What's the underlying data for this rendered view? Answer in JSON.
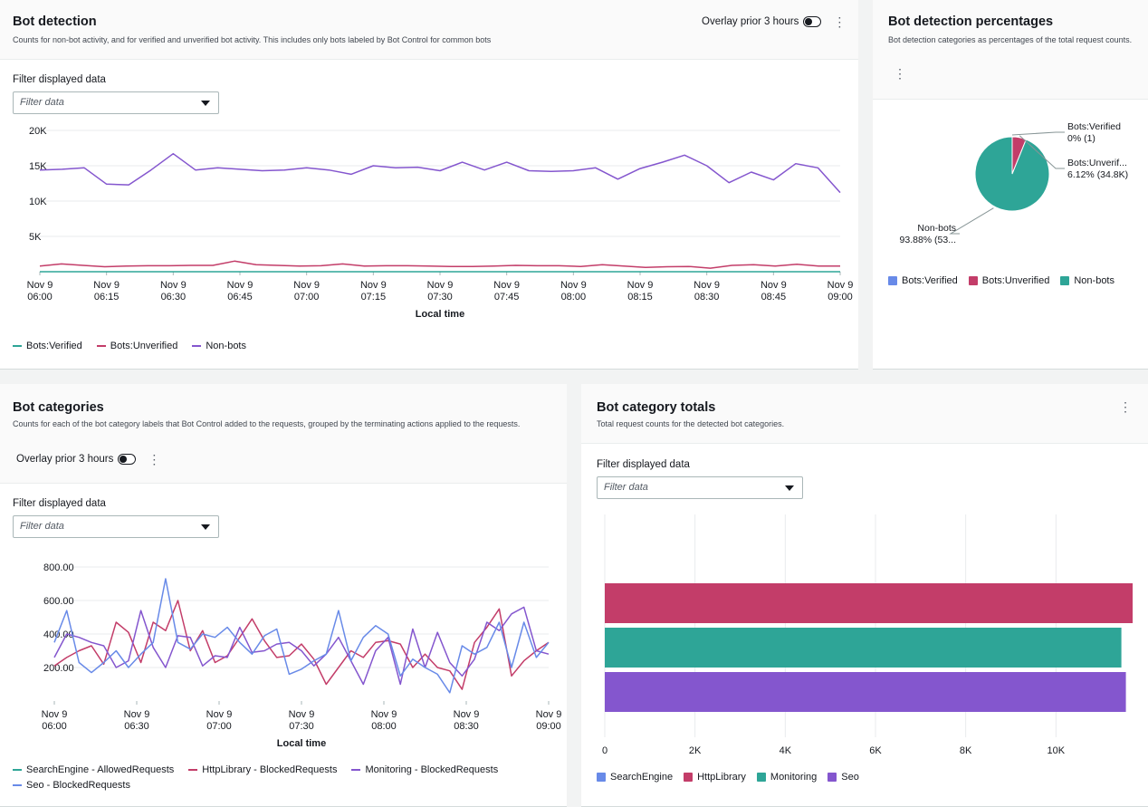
{
  "colors": {
    "verified": "#2ea597",
    "unverified": "#c33d69",
    "nonbots": "#8456ce",
    "search_engine": "#688ae8",
    "http_library": "#c33d69",
    "monitoring": "#2ea597",
    "seo": "#8456ce",
    "grid": "#e9ebed"
  },
  "icons": {
    "kebab": "⋮"
  },
  "panel1": {
    "title": "Bot detection",
    "description": "Counts for non-bot activity, and for verified and unverified bot activity. This includes only bots labeled by Bot Control for common bots",
    "overlay_label": "Overlay prior 3 hours",
    "filter_label": "Filter displayed data",
    "filter_placeholder": "Filter data"
  },
  "panel2": {
    "title": "Bot detection percentages",
    "description": "Bot detection categories as percentages of the total request counts."
  },
  "panel3": {
    "title": "Bot categories",
    "description": "Counts for each of the bot category labels that Bot Control added to the requests, grouped by the terminating actions applied to the requests.",
    "overlay_label": "Overlay prior 3 hours",
    "filter_label": "Filter displayed data",
    "filter_placeholder": "Filter data"
  },
  "panel4": {
    "title": "Bot category totals",
    "description": "Total request counts for the detected bot categories.",
    "filter_label": "Filter displayed data",
    "filter_placeholder": "Filter data"
  },
  "chart_data": [
    {
      "type": "line",
      "x_ticks": [
        [
          "Nov 9",
          "06:00"
        ],
        [
          "Nov 9",
          "06:15"
        ],
        [
          "Nov 9",
          "06:30"
        ],
        [
          "Nov 9",
          "06:45"
        ],
        [
          "Nov 9",
          "07:00"
        ],
        [
          "Nov 9",
          "07:15"
        ],
        [
          "Nov 9",
          "07:30"
        ],
        [
          "Nov 9",
          "07:45"
        ],
        [
          "Nov 9",
          "08:00"
        ],
        [
          "Nov 9",
          "08:15"
        ],
        [
          "Nov 9",
          "08:30"
        ],
        [
          "Nov 9",
          "08:45"
        ],
        [
          "Nov 9",
          "09:00"
        ]
      ],
      "xlabel": "Local time",
      "y_ticks": [
        "20K",
        "15K",
        "10K",
        "5K"
      ],
      "ylim": [
        0,
        20000
      ],
      "series": [
        {
          "name": "Bots:Verified",
          "color_key": "verified",
          "values": [
            0,
            0,
            0,
            0,
            0,
            0,
            0,
            0,
            0,
            0,
            0,
            0,
            0,
            0,
            0,
            0,
            0,
            0,
            0,
            0,
            0,
            0,
            0,
            0,
            0,
            0,
            0,
            0,
            0,
            0,
            0,
            0,
            0,
            0,
            0,
            0,
            0,
            0
          ]
        },
        {
          "name": "Bots:Unverified",
          "color_key": "unverified",
          "values": [
            800,
            1100,
            900,
            700,
            800,
            850,
            850,
            900,
            900,
            1500,
            1000,
            900,
            800,
            850,
            1100,
            800,
            850,
            850,
            800,
            750,
            750,
            800,
            900,
            850,
            850,
            750,
            1000,
            800,
            600,
            700,
            750,
            500,
            900,
            1000,
            800,
            1050,
            800,
            800
          ]
        },
        {
          "name": "Non-bots",
          "color_key": "nonbots",
          "values": [
            14400,
            14500,
            14700,
            12400,
            12300,
            14400,
            16700,
            14400,
            14700,
            14500,
            14300,
            14400,
            14700,
            14400,
            13800,
            15000,
            14700,
            14800,
            14300,
            15500,
            14400,
            15500,
            14300,
            14200,
            14300,
            14700,
            13100,
            14600,
            15500,
            16500,
            15000,
            12600,
            14100,
            13000,
            15300,
            14700,
            11200
          ]
        }
      ]
    },
    {
      "type": "pie",
      "slices": [
        {
          "name": "Bots:Verified",
          "color_key": "verified",
          "percent": 0,
          "label_line1": "Bots:Verified",
          "label_line2": "0% (1)"
        },
        {
          "name": "Bots:Unverified",
          "color_key": "unverified",
          "percent": 6.12,
          "label_line1": "Bots:Unverif...",
          "label_line2": "6.12% (34.8K)"
        },
        {
          "name": "Non-bots",
          "color_key": "nonbots_teal",
          "percent": 93.88,
          "label_line1": "Non-bots",
          "label_line2": "93.88% (53..."
        }
      ],
      "legend": [
        "Bots:Verified",
        "Bots:Unverified",
        "Non-bots"
      ]
    },
    {
      "type": "line",
      "x_ticks": [
        [
          "Nov 9",
          "06:00"
        ],
        [
          "Nov 9",
          "06:30"
        ],
        [
          "Nov 9",
          "07:00"
        ],
        [
          "Nov 9",
          "07:30"
        ],
        [
          "Nov 9",
          "08:00"
        ],
        [
          "Nov 9",
          "08:30"
        ],
        [
          "Nov 9",
          "09:00"
        ]
      ],
      "xlabel": "Local time",
      "y_ticks": [
        "800.00",
        "600.00",
        "400.00",
        "200.00"
      ],
      "ylim": [
        0,
        800
      ],
      "series": [
        {
          "name": "SearchEngine - AllowedRequests",
          "color_key": "monitoring",
          "values": []
        },
        {
          "name": "HttpLibrary - BlockedRequests",
          "color_key": "http_library",
          "values": [
            210,
            260,
            300,
            330,
            220,
            470,
            410,
            230,
            470,
            420,
            600,
            300,
            420,
            230,
            270,
            380,
            490,
            360,
            260,
            270,
            340,
            250,
            100,
            200,
            300,
            260,
            350,
            360,
            340,
            200,
            280,
            200,
            180,
            70,
            350,
            440,
            550,
            150,
            240,
            300,
            350
          ]
        },
        {
          "name": "Monitoring - BlockedRequests",
          "color_key": "nonbots",
          "values": [
            260,
            400,
            380,
            350,
            330,
            200,
            240,
            540,
            320,
            200,
            390,
            380,
            210,
            270,
            260,
            440,
            290,
            300,
            340,
            350,
            300,
            210,
            280,
            380,
            240,
            100,
            300,
            380,
            100,
            430,
            200,
            410,
            230,
            150,
            250,
            470,
            420,
            520,
            560,
            300,
            280
          ]
        },
        {
          "name": "Seo - BlockedRequests",
          "color_key": "search_engine",
          "values": [
            350,
            540,
            230,
            170,
            230,
            300,
            200,
            280,
            350,
            730,
            350,
            310,
            400,
            380,
            440,
            350,
            280,
            390,
            430,
            160,
            190,
            240,
            280,
            540,
            240,
            380,
            450,
            400,
            150,
            250,
            200,
            160,
            50,
            330,
            280,
            320,
            470,
            200,
            470,
            260,
            350
          ]
        }
      ]
    },
    {
      "type": "bar",
      "orientation": "horizontal",
      "categories": [
        "HttpLibrary",
        "Monitoring",
        "Seo"
      ],
      "values": [
        11700,
        11450,
        11550
      ],
      "x_ticks": [
        "0",
        "2K",
        "4K",
        "6K",
        "8K",
        "10K"
      ],
      "xlim": [
        0,
        12000
      ],
      "legend": [
        "SearchEngine",
        "HttpLibrary",
        "Monitoring",
        "Seo"
      ]
    }
  ]
}
